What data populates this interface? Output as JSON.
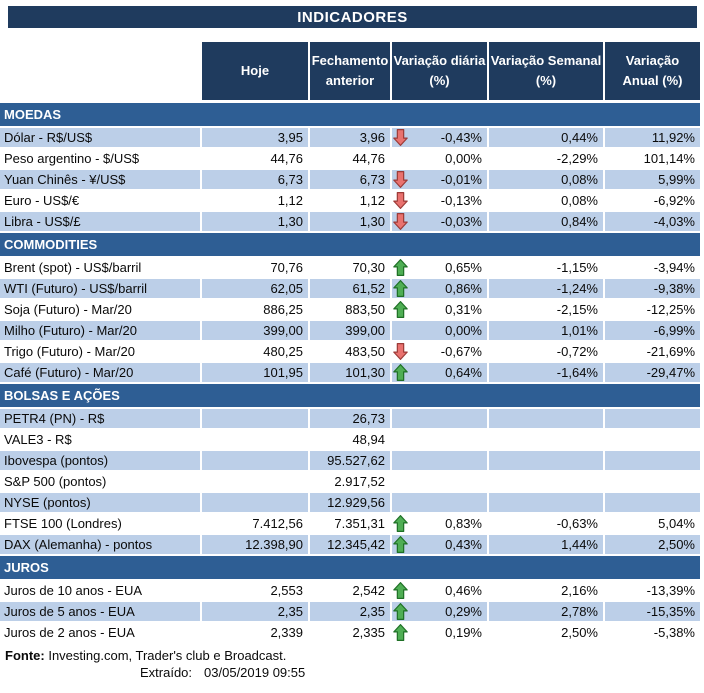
{
  "title": "INDICADORES",
  "columns": [
    "Hoje",
    "Fechamento\nanterior",
    "Variação diária\n(%)",
    "Variação Semanal\n(%)",
    "Variação\nAnual (%)"
  ],
  "sections": [
    {
      "name": "MOEDAS",
      "rows": [
        {
          "label": "Dólar - R$/US$",
          "hoje": "3,95",
          "fechamento": "3,96",
          "arrow": "down",
          "var_diaria": "-0,43%",
          "var_semanal": "0,44%",
          "var_anual": "11,92%"
        },
        {
          "label": "Peso argentino - $/US$",
          "hoje": "44,76",
          "fechamento": "44,76",
          "arrow": "none",
          "var_diaria": "0,00%",
          "var_semanal": "-2,29%",
          "var_anual": "101,14%"
        },
        {
          "label": "Yuan Chinês - ¥/US$",
          "hoje": "6,73",
          "fechamento": "6,73",
          "arrow": "down",
          "var_diaria": "-0,01%",
          "var_semanal": "0,08%",
          "var_anual": "5,99%"
        },
        {
          "label": "Euro - US$/€",
          "hoje": "1,12",
          "fechamento": "1,12",
          "arrow": "down",
          "var_diaria": "-0,13%",
          "var_semanal": "0,08%",
          "var_anual": "-6,92%"
        },
        {
          "label": "Libra - US$/£",
          "hoje": "1,30",
          "fechamento": "1,30",
          "arrow": "down",
          "var_diaria": "-0,03%",
          "var_semanal": "0,84%",
          "var_anual": "-4,03%"
        }
      ]
    },
    {
      "name": "COMMODITIES",
      "rows": [
        {
          "label": "Brent (spot) - US$/barril",
          "hoje": "70,76",
          "fechamento": "70,30",
          "arrow": "up",
          "var_diaria": "0,65%",
          "var_semanal": "-1,15%",
          "var_anual": "-3,94%"
        },
        {
          "label": "WTI (Futuro) - US$/barril",
          "hoje": "62,05",
          "fechamento": "61,52",
          "arrow": "up",
          "var_diaria": "0,86%",
          "var_semanal": "-1,24%",
          "var_anual": "-9,38%"
        },
        {
          "label": "Soja (Futuro) - Mar/20",
          "hoje": "886,25",
          "fechamento": "883,50",
          "arrow": "up",
          "var_diaria": "0,31%",
          "var_semanal": "-2,15%",
          "var_anual": "-12,25%"
        },
        {
          "label": "Milho (Futuro) - Mar/20",
          "hoje": "399,00",
          "fechamento": "399,00",
          "arrow": "none",
          "var_diaria": "0,00%",
          "var_semanal": "1,01%",
          "var_anual": "-6,99%"
        },
        {
          "label": "Trigo (Futuro) - Mar/20",
          "hoje": "480,25",
          "fechamento": "483,50",
          "arrow": "down",
          "var_diaria": "-0,67%",
          "var_semanal": "-0,72%",
          "var_anual": "-21,69%"
        },
        {
          "label": "Café (Futuro) - Mar/20",
          "hoje": "101,95",
          "fechamento": "101,30",
          "arrow": "up",
          "var_diaria": "0,64%",
          "var_semanal": "-1,64%",
          "var_anual": "-29,47%"
        }
      ]
    },
    {
      "name": "BOLSAS E AÇÕES",
      "rows": [
        {
          "label": "PETR4 (PN) - R$",
          "hoje": "",
          "fechamento": "26,73",
          "arrow": "none",
          "var_diaria": "",
          "var_semanal": "",
          "var_anual": ""
        },
        {
          "label": "VALE3 - R$",
          "hoje": "",
          "fechamento": "48,94",
          "arrow": "none",
          "var_diaria": "",
          "var_semanal": "",
          "var_anual": ""
        },
        {
          "label": "Ibovespa (pontos)",
          "hoje": "",
          "fechamento": "95.527,62",
          "arrow": "none",
          "var_diaria": "",
          "var_semanal": "",
          "var_anual": ""
        },
        {
          "label": "S&P 500 (pontos)",
          "hoje": "",
          "fechamento": "2.917,52",
          "arrow": "none",
          "var_diaria": "",
          "var_semanal": "",
          "var_anual": ""
        },
        {
          "label": "NYSE (pontos)",
          "hoje": "",
          "fechamento": "12.929,56",
          "arrow": "none",
          "var_diaria": "",
          "var_semanal": "",
          "var_anual": ""
        },
        {
          "label": "FTSE 100 (Londres)",
          "hoje": "7.412,56",
          "fechamento": "7.351,31",
          "arrow": "up",
          "var_diaria": "0,83%",
          "var_semanal": "-0,63%",
          "var_anual": "5,04%"
        },
        {
          "label": "DAX (Alemanha) - pontos",
          "hoje": "12.398,90",
          "fechamento": "12.345,42",
          "arrow": "up",
          "var_diaria": "0,43%",
          "var_semanal": "1,44%",
          "var_anual": "2,50%"
        }
      ]
    },
    {
      "name": "JUROS",
      "rows": [
        {
          "label": "Juros de 10 anos - EUA",
          "hoje": "2,553",
          "fechamento": "2,542",
          "arrow": "up",
          "var_diaria": "0,46%",
          "var_semanal": "2,16%",
          "var_anual": "-13,39%"
        },
        {
          "label": "Juros de 5 anos - EUA",
          "hoje": "2,35",
          "fechamento": "2,35",
          "arrow": "up",
          "var_diaria": "0,29%",
          "var_semanal": "2,78%",
          "var_anual": "-15,35%"
        },
        {
          "label": "Juros de 2 anos - EUA",
          "hoje": "2,339",
          "fechamento": "2,335",
          "arrow": "up",
          "var_diaria": "0,19%",
          "var_semanal": "2,50%",
          "var_anual": "-5,38%"
        }
      ]
    }
  ],
  "footer": {
    "fonte_label": "Fonte:",
    "fonte_text": " Investing.com, Trader's club e Broadcast.",
    "extraido_label": "Extraído:",
    "extraido_value": "03/05/2019 09:55"
  },
  "icons": {
    "up_arrow": "up-arrow-icon",
    "down_arrow": "down-arrow-icon"
  },
  "colors": {
    "title_bar": "#1F3B5E",
    "section_bar": "#2E5E94",
    "row_shade": "#BCCFE8",
    "header_text": "#FFFFFF",
    "body_text": "#0a0a0a",
    "arrow_up_fill": "#4FAE54",
    "arrow_up_border": "#1F7026",
    "arrow_down_fill": "#E9726F",
    "arrow_down_border": "#9C3B38"
  }
}
